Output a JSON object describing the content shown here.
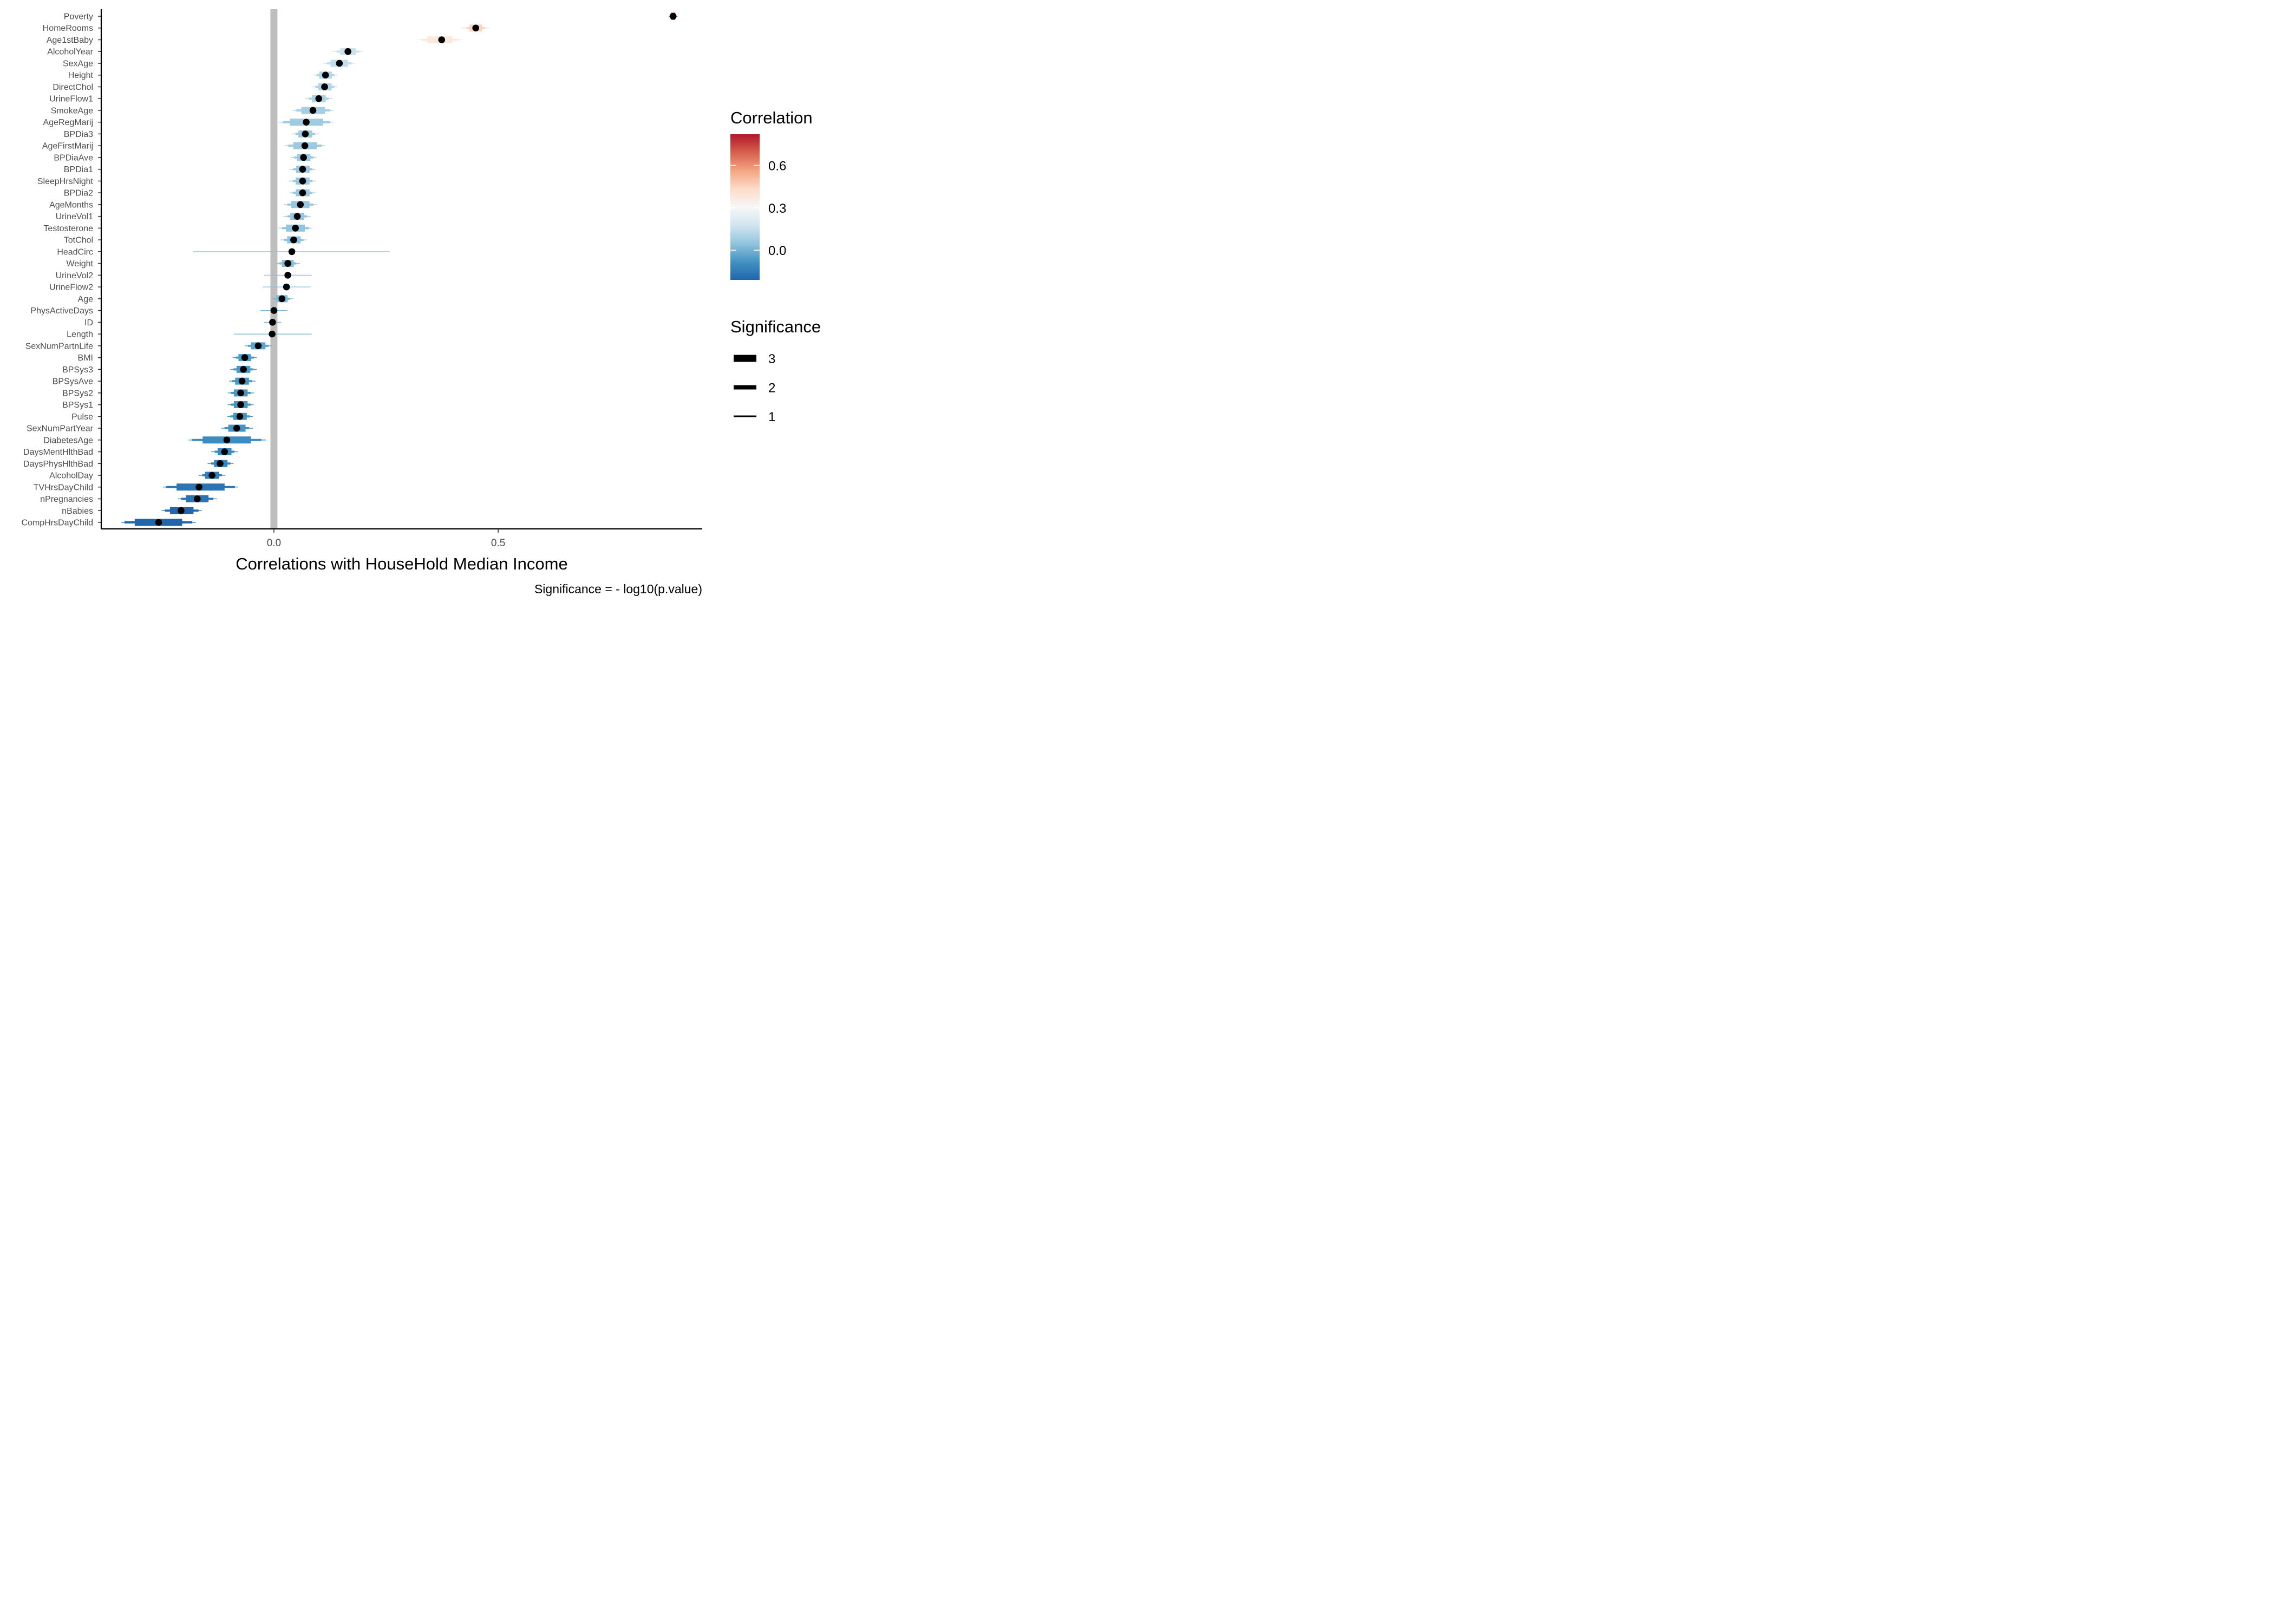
{
  "chart_data": {
    "type": "scatter",
    "xlabel": "Correlations with HouseHold Median Income",
    "ylabel": "",
    "caption": "Significance = - log10(p.value)",
    "xlim": [
      -0.385,
      0.955
    ],
    "x_ticks": [
      {
        "value": 0.0,
        "label": "0.0"
      },
      {
        "value": 0.5,
        "label": "0.5"
      }
    ],
    "reference_line": 0,
    "grid": false,
    "legend_placement": "right",
    "legends": {
      "color": {
        "title": "Correlation",
        "range": [
          -0.21,
          0.82
        ],
        "ticks": [
          {
            "value": 0.0,
            "label": "0.0"
          },
          {
            "value": 0.3,
            "label": "0.3"
          },
          {
            "value": 0.6,
            "label": "0.6"
          }
        ],
        "colors": [
          "#2166ac",
          "#4393c3",
          "#92c5de",
          "#d1e5f0",
          "#f7f7f7",
          "#fddbc7",
          "#f4a582",
          "#d6604d",
          "#b2182b"
        ]
      },
      "size": {
        "title": "Significance",
        "items": [
          {
            "label": "3",
            "value": 3
          },
          {
            "label": "2",
            "value": 2
          },
          {
            "label": "1",
            "value": 1
          }
        ]
      }
    },
    "series": [
      {
        "label": "Poverty",
        "estimate": 0.89,
        "ci95": [
          0.883,
          0.897
        ],
        "ci99": [
          0.88,
          0.9
        ]
      },
      {
        "label": "HomeRooms",
        "estimate": 0.45,
        "ci95": [
          0.43,
          0.47
        ],
        "ci99": [
          0.42,
          0.48
        ]
      },
      {
        "label": "Age1stBaby",
        "estimate": 0.374,
        "ci95": [
          0.33,
          0.41
        ],
        "ci99": [
          0.32,
          0.42
        ]
      },
      {
        "label": "AlcoholYear",
        "estimate": 0.165,
        "ci95": [
          0.14,
          0.19
        ],
        "ci99": [
          0.13,
          0.198
        ]
      },
      {
        "label": "SexAge",
        "estimate": 0.146,
        "ci95": [
          0.118,
          0.173
        ],
        "ci99": [
          0.11,
          0.18
        ]
      },
      {
        "label": "Height",
        "estimate": 0.115,
        "ci95": [
          0.095,
          0.135
        ],
        "ci99": [
          0.088,
          0.142
        ]
      },
      {
        "label": "DirectChol",
        "estimate": 0.113,
        "ci95": [
          0.092,
          0.135
        ],
        "ci99": [
          0.084,
          0.142
        ]
      },
      {
        "label": "UrineFlow1",
        "estimate": 0.1,
        "ci95": [
          0.078,
          0.122
        ],
        "ci99": [
          0.07,
          0.13
        ]
      },
      {
        "label": "SmokeAge",
        "estimate": 0.087,
        "ci95": [
          0.05,
          0.125
        ],
        "ci99": [
          0.043,
          0.132
        ]
      },
      {
        "label": "AgeRegMarij",
        "estimate": 0.072,
        "ci95": [
          0.02,
          0.125
        ],
        "ci99": [
          0.012,
          0.132
        ]
      },
      {
        "label": "BPDia3",
        "estimate": 0.07,
        "ci95": [
          0.048,
          0.092
        ],
        "ci99": [
          0.04,
          0.1
        ]
      },
      {
        "label": "AgeFirstMarij",
        "estimate": 0.069,
        "ci95": [
          0.032,
          0.107
        ],
        "ci99": [
          0.025,
          0.114
        ]
      },
      {
        "label": "BPDiaAve",
        "estimate": 0.066,
        "ci95": [
          0.045,
          0.088
        ],
        "ci99": [
          0.038,
          0.095
        ]
      },
      {
        "label": "BPDia1",
        "estimate": 0.064,
        "ci95": [
          0.043,
          0.086
        ],
        "ci99": [
          0.035,
          0.093
        ]
      },
      {
        "label": "SleepHrsNight",
        "estimate": 0.064,
        "ci95": [
          0.042,
          0.086
        ],
        "ci99": [
          0.033,
          0.094
        ]
      },
      {
        "label": "BPDia2",
        "estimate": 0.064,
        "ci95": [
          0.042,
          0.086
        ],
        "ci99": [
          0.035,
          0.093
        ]
      },
      {
        "label": "AgeMonths",
        "estimate": 0.059,
        "ci95": [
          0.03,
          0.088
        ],
        "ci99": [
          0.022,
          0.096
        ]
      },
      {
        "label": "UrineVol1",
        "estimate": 0.052,
        "ci95": [
          0.03,
          0.074
        ],
        "ci99": [
          0.022,
          0.082
        ]
      },
      {
        "label": "Testosterone",
        "estimate": 0.048,
        "ci95": [
          0.018,
          0.078
        ],
        "ci99": [
          0.01,
          0.086
        ]
      },
      {
        "label": "TotChol",
        "estimate": 0.044,
        "ci95": [
          0.023,
          0.066
        ],
        "ci99": [
          0.015,
          0.074
        ]
      },
      {
        "label": "HeadCirc",
        "estimate": 0.04,
        "ci95": [
          0.04,
          0.04
        ],
        "ci99": [
          -0.18,
          0.258
        ]
      },
      {
        "label": "Weight",
        "estimate": 0.031,
        "ci95": [
          0.012,
          0.05
        ],
        "ci99": [
          0.005,
          0.058
        ]
      },
      {
        "label": "UrineVol2",
        "estimate": 0.031,
        "ci95": [
          0.031,
          0.031
        ],
        "ci99": [
          -0.022,
          0.084
        ]
      },
      {
        "label": "UrineFlow2",
        "estimate": 0.028,
        "ci95": [
          0.028,
          0.028
        ],
        "ci99": [
          -0.025,
          0.082
        ]
      },
      {
        "label": "Age",
        "estimate": 0.018,
        "ci95": [
          0.0,
          0.036
        ],
        "ci99": [
          -0.006,
          0.043
        ]
      },
      {
        "label": "PhysActiveDays",
        "estimate": 0.0,
        "ci95": [
          0.0,
          0.0
        ],
        "ci99": [
          -0.03,
          0.03
        ]
      },
      {
        "label": "ID",
        "estimate": -0.003,
        "ci95": [
          -0.003,
          -0.003
        ],
        "ci99": [
          -0.022,
          0.016
        ]
      },
      {
        "label": "Length",
        "estimate": -0.004,
        "ci95": [
          -0.004,
          -0.004
        ],
        "ci99": [
          -0.09,
          0.084
        ]
      },
      {
        "label": "SexNumPartnLife",
        "estimate": -0.035,
        "ci95": [
          -0.058,
          -0.012
        ],
        "ci99": [
          -0.065,
          -0.005
        ]
      },
      {
        "label": "BMI",
        "estimate": -0.065,
        "ci95": [
          -0.085,
          -0.045
        ],
        "ci99": [
          -0.092,
          -0.038
        ]
      },
      {
        "label": "BPSys3",
        "estimate": -0.068,
        "ci95": [
          -0.09,
          -0.046
        ],
        "ci99": [
          -0.097,
          -0.038
        ]
      },
      {
        "label": "BPSysAve",
        "estimate": -0.071,
        "ci95": [
          -0.093,
          -0.049
        ],
        "ci99": [
          -0.1,
          -0.041
        ]
      },
      {
        "label": "BPSys2",
        "estimate": -0.074,
        "ci95": [
          -0.096,
          -0.052
        ],
        "ci99": [
          -0.103,
          -0.044
        ]
      },
      {
        "label": "BPSys1",
        "estimate": -0.074,
        "ci95": [
          -0.096,
          -0.052
        ],
        "ci99": [
          -0.103,
          -0.045
        ]
      },
      {
        "label": "Pulse",
        "estimate": -0.076,
        "ci95": [
          -0.097,
          -0.054
        ],
        "ci99": [
          -0.104,
          -0.047
        ]
      },
      {
        "label": "SexNumPartYear",
        "estimate": -0.083,
        "ci95": [
          -0.11,
          -0.055
        ],
        "ci99": [
          -0.117,
          -0.047
        ]
      },
      {
        "label": "DiabetesAge",
        "estimate": -0.105,
        "ci95": [
          -0.182,
          -0.028
        ],
        "ci99": [
          -0.19,
          -0.018
        ]
      },
      {
        "label": "DaysMentHlthBad",
        "estimate": -0.11,
        "ci95": [
          -0.132,
          -0.088
        ],
        "ci99": [
          -0.14,
          -0.08
        ]
      },
      {
        "label": "DaysPhysHlthBad",
        "estimate": -0.12,
        "ci95": [
          -0.14,
          -0.097
        ],
        "ci99": [
          -0.148,
          -0.09
        ]
      },
      {
        "label": "AlcoholDay",
        "estimate": -0.138,
        "ci95": [
          -0.16,
          -0.116
        ],
        "ci99": [
          -0.168,
          -0.108
        ]
      },
      {
        "label": "TVHrsDayChild",
        "estimate": -0.167,
        "ci95": [
          -0.24,
          -0.087
        ],
        "ci99": [
          -0.247,
          -0.08
        ]
      },
      {
        "label": "nPregnancies",
        "estimate": -0.171,
        "ci95": [
          -0.207,
          -0.135
        ],
        "ci99": [
          -0.214,
          -0.127
        ]
      },
      {
        "label": "nBabies",
        "estimate": -0.207,
        "ci95": [
          -0.243,
          -0.168
        ],
        "ci99": [
          -0.25,
          -0.161
        ]
      },
      {
        "label": "CompHrsDayChild",
        "estimate": -0.257,
        "ci95": [
          -0.333,
          -0.182
        ],
        "ci99": [
          -0.34,
          -0.174
        ]
      }
    ]
  }
}
